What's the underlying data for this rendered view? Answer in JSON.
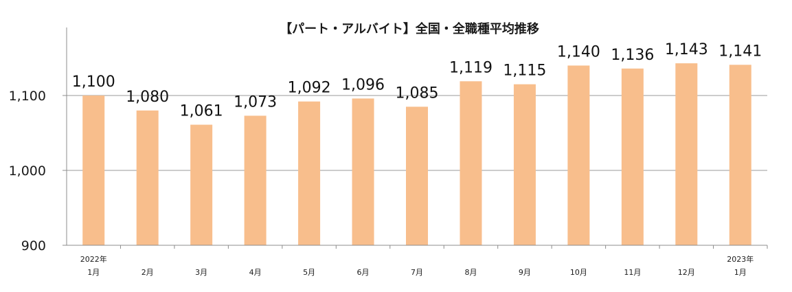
{
  "chart_data": {
    "type": "bar",
    "title": "【パート・アルバイト】全国・全職種平均推移",
    "categories": [
      [
        "2022年",
        "1月"
      ],
      [
        "2月"
      ],
      [
        "3月"
      ],
      [
        "4月"
      ],
      [
        "5月"
      ],
      [
        "6月"
      ],
      [
        "7月"
      ],
      [
        "8月"
      ],
      [
        "9月"
      ],
      [
        "10月"
      ],
      [
        "11月"
      ],
      [
        "12月"
      ],
      [
        "2023年",
        "1月"
      ]
    ],
    "values": [
      1100,
      1080,
      1061,
      1073,
      1092,
      1096,
      1085,
      1119,
      1115,
      1140,
      1136,
      1143,
      1141
    ],
    "data_labels": [
      "1,100",
      "1,080",
      "1,061",
      "1,073",
      "1,092",
      "1,096",
      "1,085",
      "1,119",
      "1,115",
      "1,140",
      "1,136",
      "1,143",
      "1,141"
    ],
    "ylim": [
      900,
      1180
    ],
    "yticks": [
      900,
      1000,
      1100
    ],
    "ytick_labels": [
      "900",
      "1,000",
      "1,100"
    ],
    "xlabel": "",
    "ylabel": "",
    "grid": true,
    "legend": "none",
    "bar_color": "#F8BE8C",
    "grid_color": "#9a9a9a"
  }
}
